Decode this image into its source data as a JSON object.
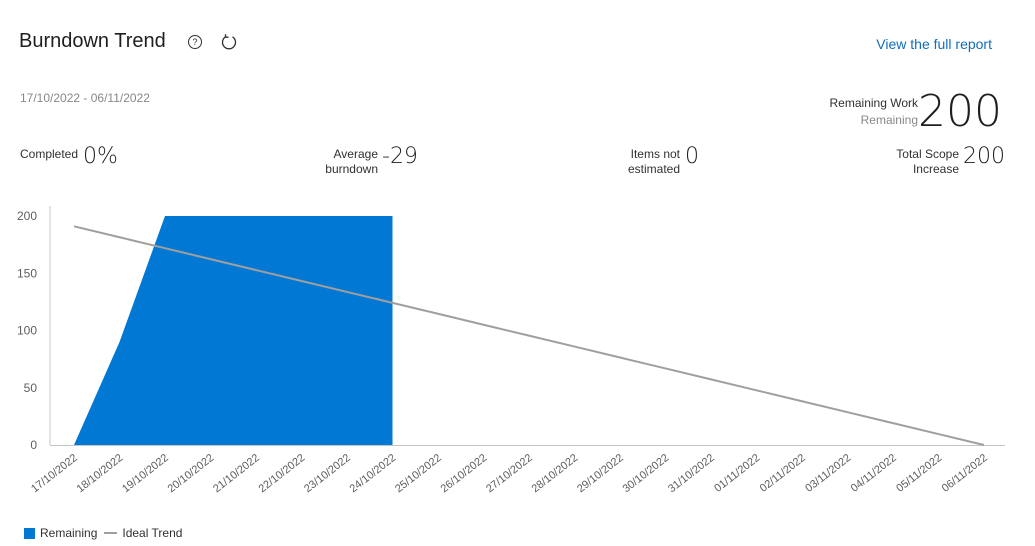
{
  "header": {
    "title": "Burndown Trend",
    "help_icon": "help-circle-icon",
    "refresh_icon": "refresh-icon",
    "report_link": "View the full report"
  },
  "date_range": "17/10/2022 - 06/11/2022",
  "remaining_work": {
    "label": "Remaining Work",
    "sublabel": "Remaining",
    "value": "200"
  },
  "metrics": {
    "completed": {
      "label": "Completed",
      "value": "0%"
    },
    "average_burndown": {
      "label_line1": "Average",
      "label_line2": "burndown",
      "value": "-29"
    },
    "items_not_estimated": {
      "label_line1": "Items not",
      "label_line2": "estimated",
      "value": "0"
    },
    "total_scope_increase": {
      "label_line1": "Total Scope",
      "label_line2": "Increase",
      "value": "200"
    }
  },
  "legend": {
    "remaining": "Remaining",
    "ideal": "Ideal Trend"
  },
  "colors": {
    "remaining": "#0078d4",
    "ideal": "#a19f9d",
    "link": "#106ebe"
  },
  "chart_data": {
    "type": "area",
    "x": [
      "17/10/2022",
      "18/10/2022",
      "19/10/2022",
      "20/10/2022",
      "21/10/2022",
      "22/10/2022",
      "23/10/2022",
      "24/10/2022",
      "25/10/2022",
      "26/10/2022",
      "27/10/2022",
      "28/10/2022",
      "29/10/2022",
      "30/10/2022",
      "31/10/2022",
      "01/11/2022",
      "02/11/2022",
      "03/11/2022",
      "04/11/2022",
      "05/11/2022",
      "06/11/2022"
    ],
    "series": [
      {
        "name": "Remaining",
        "type": "area",
        "values": [
          0,
          90,
          200,
          200,
          200,
          200,
          200,
          200,
          null,
          null,
          null,
          null,
          null,
          null,
          null,
          null,
          null,
          null,
          null,
          null,
          null
        ]
      },
      {
        "name": "Ideal Trend",
        "type": "line",
        "values": [
          191,
          181.45,
          171.9,
          162.35,
          152.8,
          143.25,
          133.7,
          124.15,
          114.6,
          105.05,
          95.5,
          85.95,
          76.4,
          66.85,
          57.3,
          47.75,
          38.2,
          28.65,
          19.1,
          9.55,
          0
        ]
      }
    ],
    "yticks": [
      0,
      50,
      100,
      150,
      200
    ],
    "ylim": [
      0,
      200
    ],
    "grid": false,
    "legend_position": "bottom-left"
  }
}
